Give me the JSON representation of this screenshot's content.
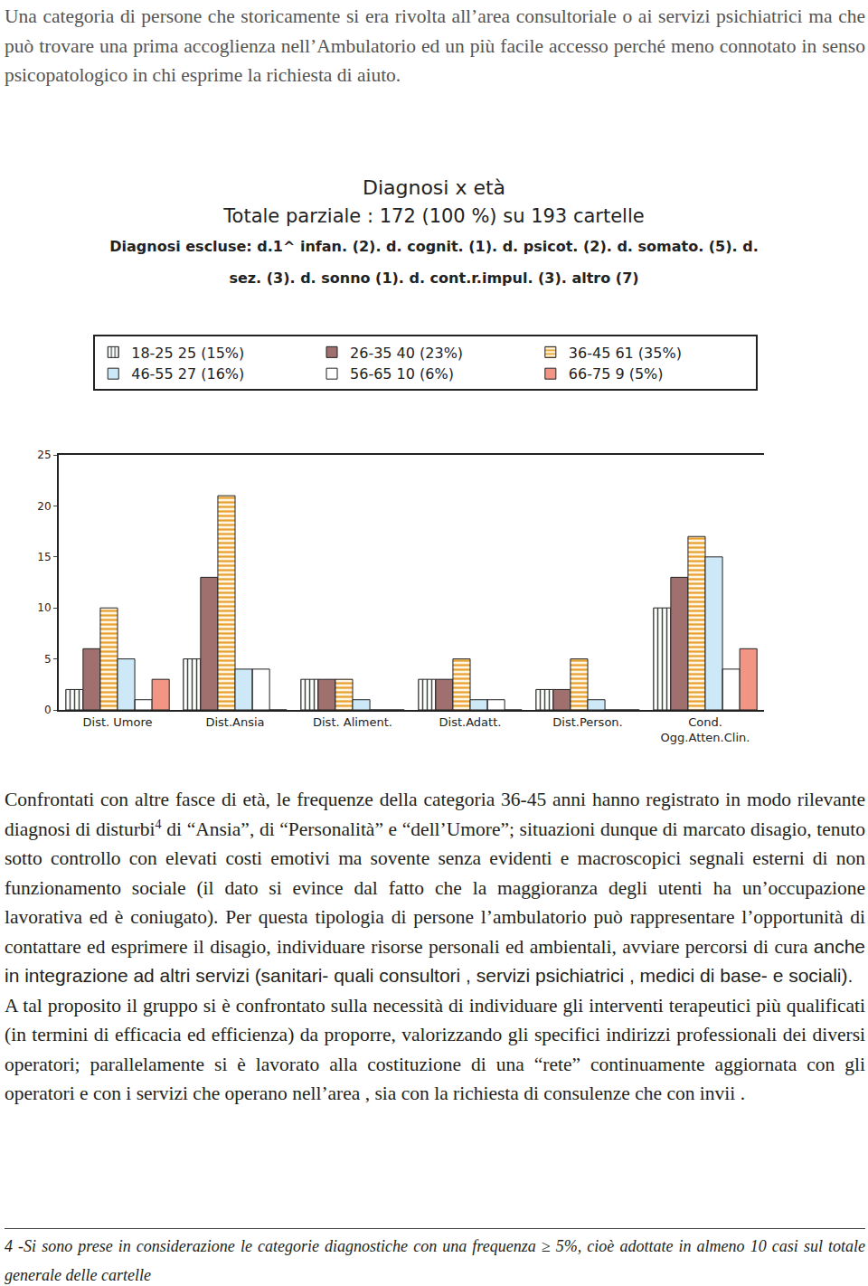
{
  "intro": {
    "text": "Una categoria di persone che storicamente si era rivolta all’area consultoriale o ai servizi psichiatrici ma che può trovare una prima accoglienza nell’Ambulatorio ed un più facile accesso perché meno connotato in senso psicopatologico in chi esprime la richiesta di aiuto."
  },
  "chart_data": {
    "type": "bar",
    "title": "Diagnosi x età",
    "subtitle": "Totale parziale : 172 (100 %) su 193 cartelle",
    "annotations": [
      "Diagnosi escluse: d.1^ infan. (2). d. cognit. (1). d. psicot. (2). d. somato. (5). d.",
      "sez. (3). d. sonno (1). d. cont.r.impul. (3). altro (7)"
    ],
    "categories": [
      "Dist. Umore",
      "Dist.Ansia",
      "Dist. Aliment.",
      "Dist.Adatt.",
      "Dist.Person.",
      "Cond. Ogg.Atten.Clin."
    ],
    "series": [
      {
        "name": "18-25 25 (15%)",
        "color": "#b9c9bb",
        "values": [
          2,
          5,
          3,
          3,
          2,
          10
        ]
      },
      {
        "name": "26-35 40 (23%)",
        "color": "#a0706f",
        "values": [
          6,
          13,
          3,
          3,
          2,
          13
        ]
      },
      {
        "name": "36-45 61 (35%)",
        "color": "#f0b23e",
        "values": [
          10,
          21,
          3,
          5,
          5,
          17
        ]
      },
      {
        "name": "46-55 27 (16%)",
        "color": "#cde9f8",
        "values": [
          5,
          4,
          1,
          1,
          1,
          15
        ]
      },
      {
        "name": "56-65 10 (6%)",
        "color": "#1b80c2",
        "values": [
          1,
          4,
          0,
          1,
          0,
          4
        ]
      },
      {
        "name": "66-75 9 (5%)",
        "color": "#f29584",
        "values": [
          3,
          0,
          0,
          0,
          0,
          6
        ]
      }
    ],
    "ylim": [
      0,
      25
    ],
    "yticks": [
      0,
      5,
      10,
      15,
      20,
      25
    ],
    "grid": false,
    "legend": "top"
  },
  "body": {
    "paragraphs": [
      {
        "segments": [
          {
            "style": "serif",
            "text": "Confrontati con altre fasce di età, le frequenze della categoria 36-45 anni hanno registrato in modo rilevante diagnosi di disturbi"
          },
          {
            "style": "sup",
            "text": "4"
          },
          {
            "style": "serif",
            "text": " di “Ansia”, di “Personalità” e “dell’Umore”; situazioni dunque di marcato disagio, tenuto sotto controllo con elevati costi emotivi ma sovente senza evidenti e macroscopici segnali esterni di non funzionamento sociale (il dato si evince dal fatto che la maggioranza degli utenti ha un’occupazione lavorativa ed è coniugato). Per questa tipologia di persone l’ambulatorio può rappresentare l’opportunità di contattare ed esprimere il disagio, individuare risorse personali ed ambientali, avviare percorsi di cura "
          },
          {
            "style": "sans",
            "text": "anche in integrazione ad altri servizi (sanitari- quali consultori , servizi psichiatrici , medici di base- e sociali)."
          }
        ]
      },
      {
        "segments": [
          {
            "style": "serif",
            "text": "A tal proposito il gruppo si è confrontato sulla necessità di individuare gli interventi terapeutici più qualificati (in termini di efficacia ed efficienza) da proporre, valorizzando gli specifici indirizzi professionali dei diversi operatori; parallelamente si è lavorato alla costituzione di una  “rete” continuamente aggiornata con gli operatori e con i servizi che operano nell’area , sia con la richiesta di consulenze che con invii ."
          }
        ]
      }
    ]
  },
  "footnote": {
    "text": "4 -Si sono prese in considerazione le categorie diagnostiche con una frequenza ≥ 5%, cioè adottate in almeno 10 casi sul totale generale delle cartelle"
  }
}
